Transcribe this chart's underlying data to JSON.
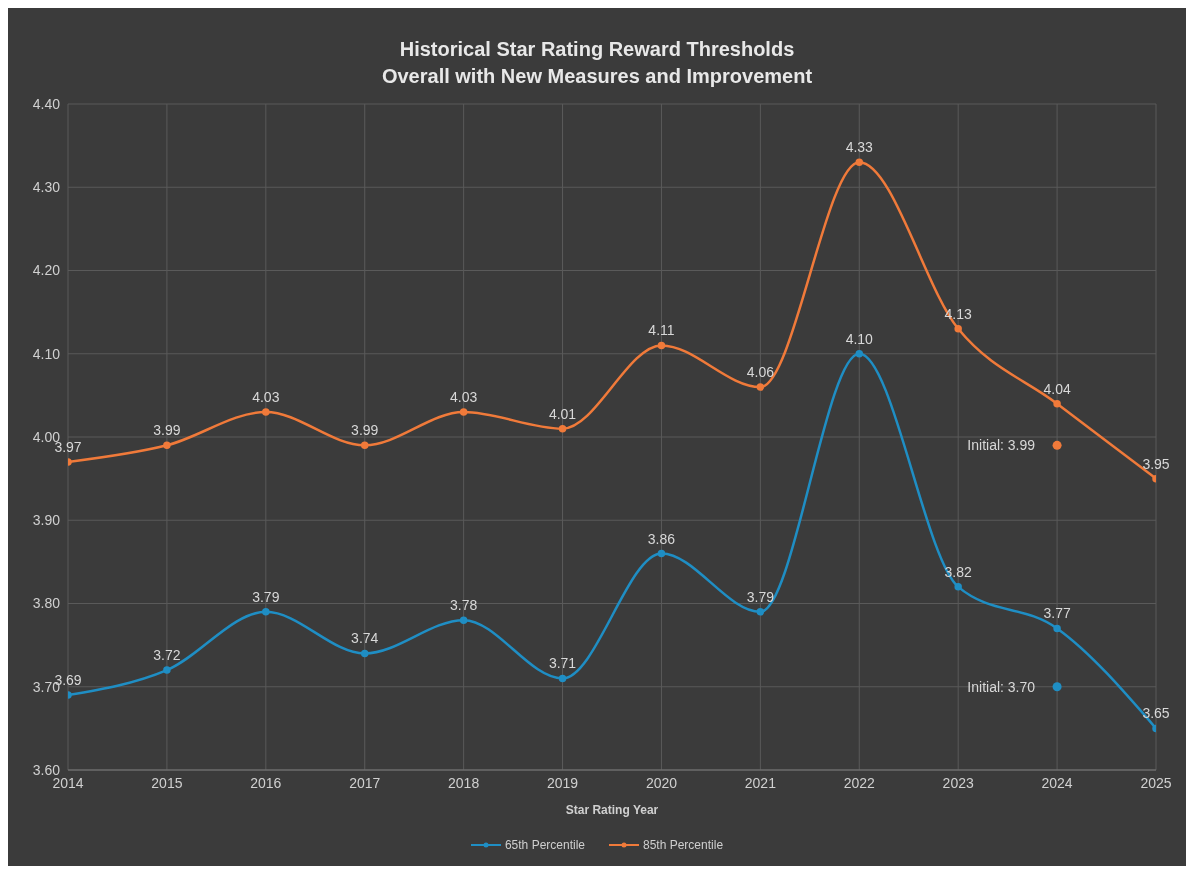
{
  "chart_data": {
    "type": "line",
    "title": "Historical Star Rating Reward Thresholds\nOverall with New Measures and Improvement",
    "xlabel": "Star Rating Year",
    "x": [
      2014,
      2015,
      2016,
      2017,
      2018,
      2019,
      2020,
      2021,
      2022,
      2023,
      2024,
      2025
    ],
    "series": [
      {
        "name": "65th Percentile",
        "color": "#1f8ec4",
        "values": [
          3.69,
          3.72,
          3.79,
          3.74,
          3.78,
          3.71,
          3.86,
          3.79,
          4.1,
          3.82,
          3.77,
          3.65
        ],
        "value_labels": [
          "3.69",
          "3.72",
          "3.79",
          "3.74",
          "3.78",
          "3.71",
          "3.86",
          "3.79",
          "4.10",
          "3.82",
          "3.77",
          "3.65"
        ]
      },
      {
        "name": "85th Percentile",
        "color": "#f07a3a",
        "values": [
          3.97,
          3.99,
          4.03,
          3.99,
          4.03,
          4.01,
          4.11,
          4.06,
          4.33,
          4.13,
          4.04,
          3.95
        ],
        "value_labels": [
          "3.97",
          "3.99",
          "4.03",
          "3.99",
          "4.03",
          "4.01",
          "4.11",
          "4.06",
          "4.33",
          "4.13",
          "4.04",
          "3.95"
        ]
      },
      {
        "type": "scatter",
        "color": "#f07a3a",
        "x": [
          2024
        ],
        "values": [
          3.99
        ]
      },
      {
        "type": "scatter",
        "color": "#1f8ec4",
        "x": [
          2024
        ],
        "values": [
          3.7
        ]
      }
    ],
    "annotations": [
      {
        "text": "Initial: 3.99",
        "x": 2024,
        "y": 3.99
      },
      {
        "text": "Initial: 3.70",
        "x": 2024,
        "y": 3.7
      }
    ],
    "xlim": [
      2014,
      2025
    ],
    "xticks": [
      2014,
      2015,
      2016,
      2017,
      2018,
      2019,
      2020,
      2021,
      2022,
      2023,
      2024,
      2025
    ],
    "ylim": [
      3.6,
      4.4
    ],
    "yticks": [
      {
        "value": 3.6,
        "label": "3.60"
      },
      {
        "value": 3.7,
        "label": "3.70"
      },
      {
        "value": 3.8,
        "label": "3.80"
      },
      {
        "value": 3.9,
        "label": "3.90"
      },
      {
        "value": 4.0,
        "label": "4.00"
      },
      {
        "value": 4.1,
        "label": "4.10"
      },
      {
        "value": 4.2,
        "label": "4.20"
      },
      {
        "value": 4.3,
        "label": "4.30"
      },
      {
        "value": 4.4,
        "label": "4.40"
      }
    ],
    "grid": true,
    "legend": "bottom",
    "marker": "circle",
    "line_style": "solid"
  }
}
